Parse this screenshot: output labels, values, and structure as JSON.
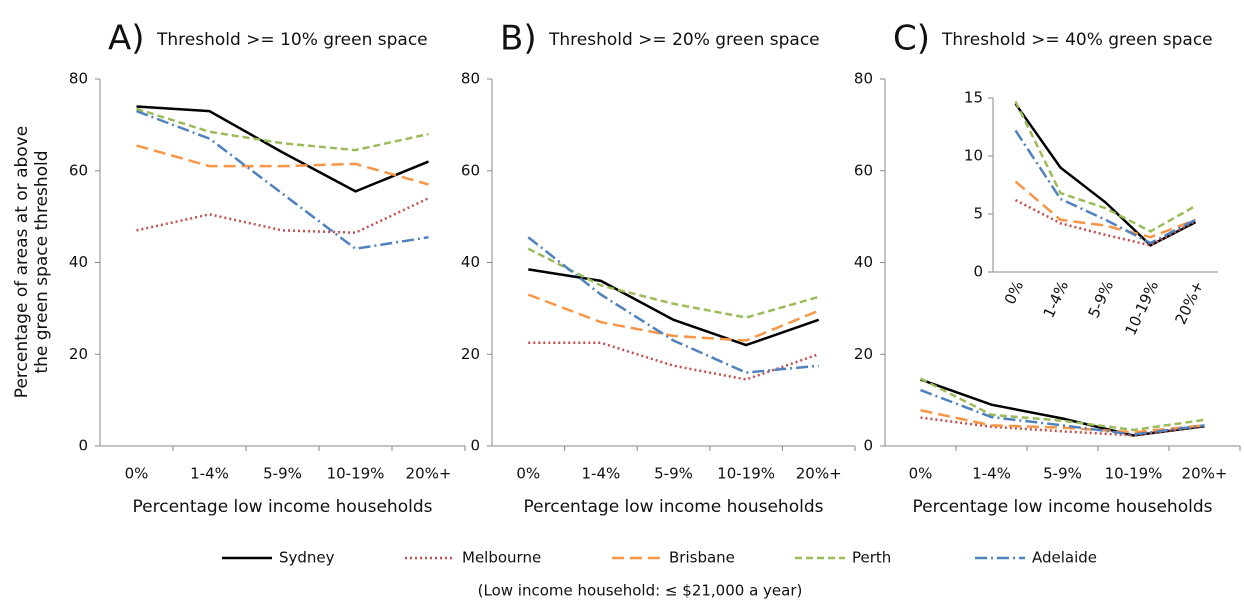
{
  "chart_data": [
    {
      "type": "line",
      "panel": "A)",
      "title": "Threshold >= 10% green space",
      "ylabel": [
        "Percentage of areas at or above",
        "the green space threshold"
      ],
      "xlabel": "Percentage low income households",
      "categories": [
        "0%",
        "1-4%",
        "5-9%",
        "10-19%",
        "20%+"
      ],
      "ylim": [
        0,
        80
      ],
      "yticks": [
        0,
        20,
        40,
        60,
        80
      ],
      "series": [
        {
          "name": "Sydney",
          "color": "#000000",
          "dash": "none",
          "values": [
            74,
            73,
            64,
            55.5,
            62
          ]
        },
        {
          "name": "Melbourne",
          "color": "#c0504d",
          "dash": "2 3",
          "values": [
            47,
            50.5,
            47,
            46.5,
            54
          ]
        },
        {
          "name": "Brisbane",
          "color": "#f79646",
          "dash": "12 6",
          "values": [
            65.5,
            61,
            61,
            61.5,
            57
          ]
        },
        {
          "name": "Perth",
          "color": "#9bbb59",
          "dash": "7 4",
          "values": [
            73.5,
            68.5,
            66,
            64.5,
            68
          ]
        },
        {
          "name": "Adelaide",
          "color": "#4f81bd",
          "dash": "12 4 2 4",
          "values": [
            73,
            67,
            55,
            43,
            45.5
          ]
        }
      ]
    },
    {
      "type": "line",
      "panel": "B)",
      "title": "Threshold >= 20% green space",
      "xlabel": "Percentage low income households",
      "categories": [
        "0%",
        "1-4%",
        "5-9%",
        "10-19%",
        "20%+"
      ],
      "ylim": [
        0,
        80
      ],
      "yticks": [
        0,
        20,
        40,
        60,
        80
      ],
      "series": [
        {
          "values": [
            38.5,
            36,
            27.5,
            22,
            27.5
          ]
        },
        {
          "values": [
            22.5,
            22.5,
            17.5,
            14.5,
            20
          ]
        },
        {
          "values": [
            33,
            27,
            24,
            23,
            29.5
          ]
        },
        {
          "values": [
            43,
            35,
            31,
            28,
            32.5
          ]
        },
        {
          "values": [
            45.5,
            33,
            23,
            16,
            17.5
          ]
        }
      ]
    },
    {
      "type": "line",
      "panel": "C)",
      "title": "Threshold >= 40% green space",
      "xlabel": "Percentage low income households",
      "categories": [
        "0%",
        "1-4%",
        "5-9%",
        "10-19%",
        "20%+"
      ],
      "ylim": [
        0,
        80
      ],
      "yticks": [
        0,
        20,
        40,
        60,
        80
      ],
      "inset": {
        "ylim": [
          0,
          15
        ],
        "yticks": [
          0,
          5,
          10,
          15
        ]
      },
      "series": [
        {
          "values": [
            14.5,
            9,
            6,
            2.3,
            4.3
          ]
        },
        {
          "values": [
            6.2,
            4.2,
            3.2,
            2.3,
            4.4
          ]
        },
        {
          "values": [
            7.8,
            4.5,
            4,
            3,
            4.5
          ]
        },
        {
          "values": [
            14.7,
            6.8,
            5.5,
            3.5,
            5.7
          ]
        },
        {
          "values": [
            12.2,
            6.3,
            4.5,
            2.5,
            4.5
          ]
        }
      ]
    }
  ],
  "footnote": "(Low income household: ≤ $21,000 a year)"
}
